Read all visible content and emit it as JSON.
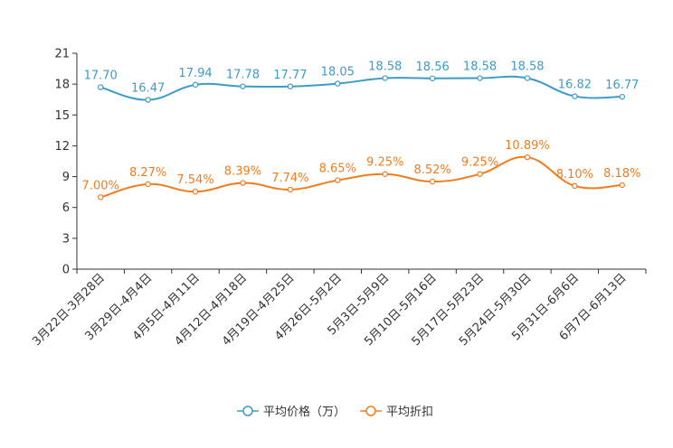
{
  "chart_data": {
    "type": "line",
    "title": "",
    "xlabel": "",
    "ylabel": "",
    "ylim": [
      0,
      21
    ],
    "yticks": [
      0,
      3,
      6,
      9,
      12,
      15,
      18,
      21
    ],
    "grid": false,
    "legend_position": "bottom-center",
    "categories": [
      "3月22日-3月28日",
      "3月29日-4月4日",
      "4月5日-4月11日",
      "4月12日-4月18日",
      "4月19日-4月25日",
      "4月26日-5月2日",
      "5月3日-5月9日",
      "5月10日-5月16日",
      "5月17日-5月23日",
      "5月24日-5月30日",
      "5月31日-6月6日",
      "6月7日-6月13日"
    ],
    "series": [
      {
        "name": "平均价格（万）",
        "color": "#3d9bc7",
        "values": [
          17.7,
          16.47,
          17.94,
          17.78,
          17.77,
          18.05,
          18.58,
          18.56,
          18.58,
          18.58,
          16.82,
          16.77
        ],
        "labels": [
          "17.70",
          "16.47",
          "17.94",
          "17.78",
          "17.77",
          "18.05",
          "18.58",
          "18.56",
          "18.58",
          "18.58",
          "16.82",
          "16.77"
        ]
      },
      {
        "name": "平均折扣",
        "color": "#f07c1e",
        "values": [
          7.0,
          8.27,
          7.54,
          8.39,
          7.74,
          8.65,
          9.25,
          8.52,
          9.25,
          10.89,
          8.1,
          8.18
        ],
        "labels": [
          "7.00%",
          "8.27%",
          "7.54%",
          "8.39%",
          "7.74%",
          "8.65%",
          "9.25%",
          "8.52%",
          "9.25%",
          "10.89%",
          "8.10%",
          "8.18%"
        ]
      }
    ]
  }
}
